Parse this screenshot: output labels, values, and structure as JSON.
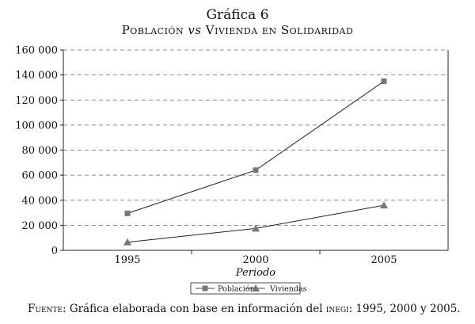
{
  "chart_data": {
    "type": "line",
    "title": "Gráfica 6",
    "subtitle": {
      "before": "Población ",
      "vs": "vs",
      "after": " Vivienda en Solidaridad"
    },
    "xlabel": "Periodo",
    "ylabel": "",
    "categories": [
      "1995",
      "2000",
      "2005"
    ],
    "ylim": [
      0,
      160000
    ],
    "yticks": [
      0,
      20000,
      40000,
      60000,
      80000,
      100000,
      120000,
      140000,
      160000
    ],
    "ytick_labels": [
      "0",
      "20 000",
      "40 000",
      "60 000",
      "80 000",
      "100 000",
      "120 000",
      "140 000",
      "160 000"
    ],
    "grid": true,
    "legend_position": "bottom-center",
    "series": [
      {
        "name": "Población",
        "values": [
          29500,
          64000,
          135000
        ],
        "marker": "square",
        "color": "#777777"
      },
      {
        "name": "Viviendas",
        "values": [
          6500,
          17500,
          36000
        ],
        "marker": "triangle",
        "color": "#777777"
      }
    ]
  },
  "footer": {
    "label": "Fuente",
    "text": ": Gráfica elaborada con base en información del ",
    "abbr": "inegi",
    "tail": ": 1995, 2000 y 2005."
  }
}
